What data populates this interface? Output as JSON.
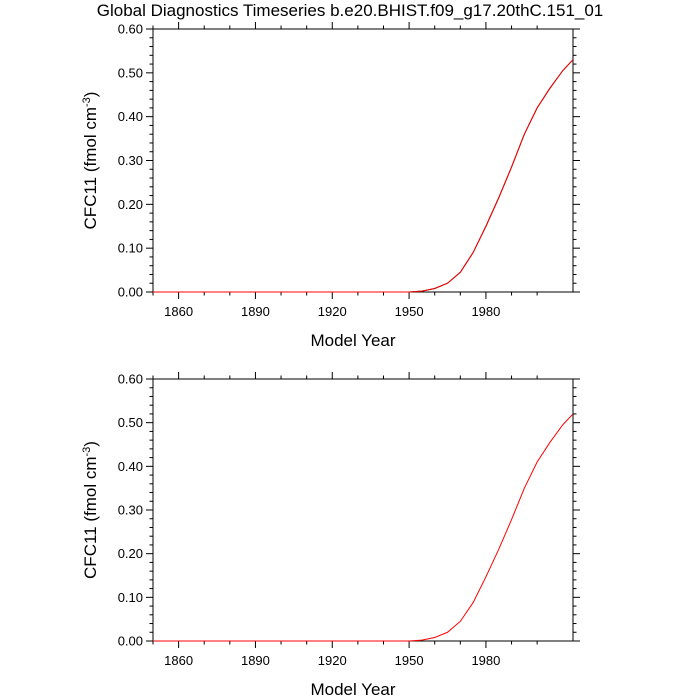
{
  "title": "Global Diagnostics Timeseries b.e20.BHIST.f09_g17.20thC.151_01",
  "chart_data": [
    {
      "type": "line",
      "xlabel": "Model Year",
      "ylabel": "CFC11 (fmol cm",
      "ylabel_sup": "-3",
      "ylabel_close": ")",
      "xlim": [
        1850,
        2014
      ],
      "ylim": [
        0,
        0.6
      ],
      "xticks": [
        "1860",
        "1890",
        "1920",
        "1950",
        "1980"
      ],
      "yticks": [
        "0.00",
        "0.10",
        "0.20",
        "0.30",
        "0.40",
        "0.50",
        "0.60"
      ],
      "series": [
        {
          "color": "#000000",
          "x": [
            1850,
            1940,
            1950,
            1955,
            1960,
            1965,
            1970,
            1975,
            1980,
            1985,
            1990,
            1995,
            2000,
            2005,
            2010,
            2014
          ],
          "y": [
            0,
            0,
            0,
            0.002,
            0.008,
            0.02,
            0.045,
            0.09,
            0.15,
            0.215,
            0.285,
            0.36,
            0.42,
            0.465,
            0.505,
            0.53
          ]
        },
        {
          "color": "#ff0000",
          "x": [
            1850,
            1940,
            1950,
            1955,
            1960,
            1965,
            1970,
            1975,
            1980,
            1985,
            1990,
            1995,
            2000,
            2005,
            2010,
            2014
          ],
          "y": [
            0,
            0,
            0,
            0.002,
            0.008,
            0.02,
            0.045,
            0.09,
            0.15,
            0.215,
            0.285,
            0.36,
            0.42,
            0.465,
            0.505,
            0.53
          ]
        }
      ]
    },
    {
      "type": "line",
      "xlabel": "Model Year",
      "ylabel": "CFC11 (fmol cm",
      "ylabel_sup": "-3",
      "ylabel_close": ")",
      "xlim": [
        1850,
        2014
      ],
      "ylim": [
        0,
        0.6
      ],
      "xticks": [
        "1860",
        "1890",
        "1920",
        "1950",
        "1980"
      ],
      "yticks": [
        "0.00",
        "0.10",
        "0.20",
        "0.30",
        "0.40",
        "0.50",
        "0.60"
      ],
      "series": [
        {
          "color": "#ff0000",
          "x": [
            1850,
            1940,
            1950,
            1955,
            1960,
            1965,
            1970,
            1975,
            1980,
            1985,
            1990,
            1995,
            2000,
            2005,
            2010,
            2014
          ],
          "y": [
            0,
            0,
            0,
            0.002,
            0.008,
            0.02,
            0.045,
            0.088,
            0.147,
            0.21,
            0.278,
            0.35,
            0.41,
            0.455,
            0.495,
            0.52
          ]
        }
      ]
    }
  ]
}
